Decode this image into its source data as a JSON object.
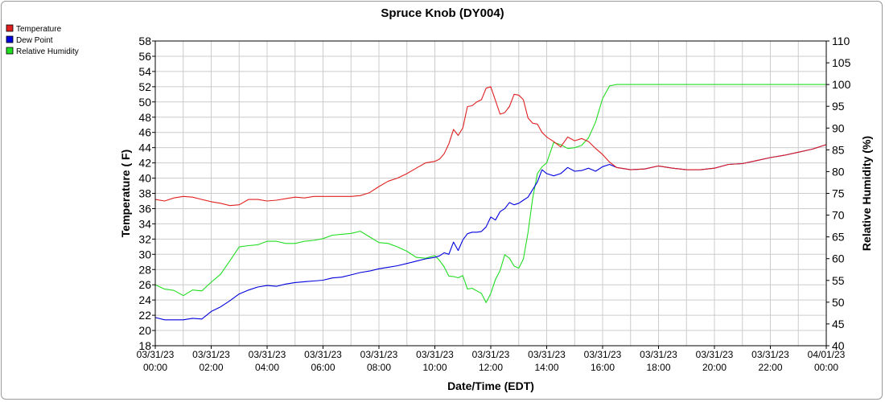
{
  "chart_data": {
    "type": "line",
    "title": "Spruce Knob (DY004)",
    "xlabel": "Date/Time (EDT)",
    "ylabel": "Temperature ( F)",
    "y2label": "Relative Humidity (%)",
    "ylim": [
      18,
      58
    ],
    "y2lim": [
      40,
      110
    ],
    "yticks": [
      "18",
      "20",
      "22",
      "24",
      "26",
      "28",
      "30",
      "32",
      "34",
      "36",
      "38",
      "40",
      "42",
      "44",
      "46",
      "48",
      "50",
      "52",
      "54",
      "56",
      "58"
    ],
    "y2ticks": [
      "40",
      "45",
      "50",
      "55",
      "60",
      "65",
      "70",
      "75",
      "80",
      "85",
      "90",
      "95",
      "100",
      "105",
      "110"
    ],
    "x_tick_labels": [
      [
        "03/31/23",
        "00:00"
      ],
      [
        "03/31/23",
        "02:00"
      ],
      [
        "03/31/23",
        "04:00"
      ],
      [
        "03/31/23",
        "06:00"
      ],
      [
        "03/31/23",
        "08:00"
      ],
      [
        "03/31/23",
        "10:00"
      ],
      [
        "03/31/23",
        "12:00"
      ],
      [
        "03/31/23",
        "14:00"
      ],
      [
        "03/31/23",
        "16:00"
      ],
      [
        "03/31/23",
        "18:00"
      ],
      [
        "03/31/23",
        "20:00"
      ],
      [
        "03/31/23",
        "22:00"
      ],
      [
        "04/01/23",
        "00:00"
      ]
    ],
    "grid": true,
    "legend_position": "top-left",
    "series": [
      {
        "name": "Temperature",
        "color": "#e02020",
        "axis": "left",
        "points": [
          [
            "03/31/23 00:00",
            37.2
          ],
          [
            "03/31/23 00:20",
            37.0
          ],
          [
            "03/31/23 00:40",
            37.4
          ],
          [
            "03/31/23 01:00",
            37.6
          ],
          [
            "03/31/23 01:20",
            37.5
          ],
          [
            "03/31/23 01:40",
            37.2
          ],
          [
            "03/31/23 02:00",
            36.9
          ],
          [
            "03/31/23 02:20",
            36.7
          ],
          [
            "03/31/23 02:40",
            36.4
          ],
          [
            "03/31/23 03:00",
            36.5
          ],
          [
            "03/31/23 03:20",
            37.2
          ],
          [
            "03/31/23 03:40",
            37.2
          ],
          [
            "03/31/23 04:00",
            37.0
          ],
          [
            "03/31/23 04:20",
            37.1
          ],
          [
            "03/31/23 04:40",
            37.3
          ],
          [
            "03/31/23 05:00",
            37.5
          ],
          [
            "03/31/23 05:20",
            37.4
          ],
          [
            "03/31/23 05:40",
            37.6
          ],
          [
            "03/31/23 06:00",
            37.6
          ],
          [
            "03/31/23 06:20",
            37.6
          ],
          [
            "03/31/23 06:40",
            37.6
          ],
          [
            "03/31/23 07:00",
            37.6
          ],
          [
            "03/31/23 07:20",
            37.7
          ],
          [
            "03/31/23 07:40",
            38.1
          ],
          [
            "03/31/23 08:00",
            38.9
          ],
          [
            "03/31/23 08:20",
            39.6
          ],
          [
            "03/31/23 08:40",
            40.0
          ],
          [
            "03/31/23 09:00",
            40.6
          ],
          [
            "03/31/23 09:20",
            41.3
          ],
          [
            "03/31/23 09:40",
            42.0
          ],
          [
            "03/31/23 10:00",
            42.2
          ],
          [
            "03/31/23 10:10",
            42.5
          ],
          [
            "03/31/23 10:20",
            43.2
          ],
          [
            "03/31/23 10:30",
            44.5
          ],
          [
            "03/31/23 10:40",
            46.4
          ],
          [
            "03/31/23 10:50",
            45.6
          ],
          [
            "03/31/23 11:00",
            46.6
          ],
          [
            "03/31/23 11:10",
            49.4
          ],
          [
            "03/31/23 11:20",
            49.5
          ],
          [
            "03/31/23 11:30",
            50.0
          ],
          [
            "03/31/23 11:40",
            50.3
          ],
          [
            "03/31/23 11:50",
            51.8
          ],
          [
            "03/31/23 12:00",
            52.0
          ],
          [
            "03/31/23 12:10",
            50.2
          ],
          [
            "03/31/23 12:20",
            48.4
          ],
          [
            "03/31/23 12:30",
            48.6
          ],
          [
            "03/31/23 12:40",
            49.4
          ],
          [
            "03/31/23 12:50",
            51.0
          ],
          [
            "03/31/23 13:00",
            50.9
          ],
          [
            "03/31/23 13:10",
            50.3
          ],
          [
            "03/31/23 13:20",
            47.9
          ],
          [
            "03/31/23 13:30",
            47.2
          ],
          [
            "03/31/23 13:40",
            47.1
          ],
          [
            "03/31/23 13:50",
            46.0
          ],
          [
            "03/31/23 14:00",
            45.4
          ],
          [
            "03/31/23 14:15",
            44.8
          ],
          [
            "03/31/23 14:30",
            44.1
          ],
          [
            "03/31/23 14:45",
            45.4
          ],
          [
            "03/31/23 15:00",
            44.9
          ],
          [
            "03/31/23 15:15",
            45.2
          ],
          [
            "03/31/23 15:30",
            44.8
          ],
          [
            "03/31/23 15:45",
            43.9
          ],
          [
            "03/31/23 16:00",
            43.1
          ],
          [
            "03/31/23 16:15",
            42.1
          ],
          [
            "03/31/23 16:30",
            41.4
          ],
          [
            "03/31/23 17:00",
            41.1
          ],
          [
            "03/31/23 17:30",
            41.2
          ],
          [
            "03/31/23 18:00",
            41.6
          ],
          [
            "03/31/23 18:30",
            41.3
          ],
          [
            "03/31/23 19:00",
            41.1
          ],
          [
            "03/31/23 19:30",
            41.1
          ],
          [
            "03/31/23 20:00",
            41.3
          ],
          [
            "03/31/23 20:30",
            41.8
          ],
          [
            "03/31/23 21:00",
            41.9
          ],
          [
            "03/31/23 21:30",
            42.3
          ],
          [
            "03/31/23 22:00",
            42.7
          ],
          [
            "03/31/23 22:30",
            43.0
          ],
          [
            "03/31/23 23:00",
            43.4
          ],
          [
            "03/31/23 23:30",
            43.8
          ],
          [
            "04/01/23 00:00",
            44.4
          ]
        ]
      },
      {
        "name": "Dew Point",
        "color": "#0000dd",
        "axis": "left",
        "points": [
          [
            "03/31/23 00:00",
            21.7
          ],
          [
            "03/31/23 00:20",
            21.4
          ],
          [
            "03/31/23 00:40",
            21.4
          ],
          [
            "03/31/23 01:00",
            21.4
          ],
          [
            "03/31/23 01:20",
            21.6
          ],
          [
            "03/31/23 01:40",
            21.5
          ],
          [
            "03/31/23 02:00",
            22.5
          ],
          [
            "03/31/23 02:20",
            23.1
          ],
          [
            "03/31/23 02:40",
            23.9
          ],
          [
            "03/31/23 03:00",
            24.8
          ],
          [
            "03/31/23 03:20",
            25.3
          ],
          [
            "03/31/23 03:40",
            25.7
          ],
          [
            "03/31/23 04:00",
            25.9
          ],
          [
            "03/31/23 04:20",
            25.8
          ],
          [
            "03/31/23 04:40",
            26.1
          ],
          [
            "03/31/23 05:00",
            26.3
          ],
          [
            "03/31/23 05:20",
            26.4
          ],
          [
            "03/31/23 05:40",
            26.5
          ],
          [
            "03/31/23 06:00",
            26.6
          ],
          [
            "03/31/23 06:20",
            26.9
          ],
          [
            "03/31/23 06:40",
            27.0
          ],
          [
            "03/31/23 07:00",
            27.3
          ],
          [
            "03/31/23 07:20",
            27.6
          ],
          [
            "03/31/23 07:40",
            27.8
          ],
          [
            "03/31/23 08:00",
            28.1
          ],
          [
            "03/31/23 08:20",
            28.3
          ],
          [
            "03/31/23 08:40",
            28.5
          ],
          [
            "03/31/23 09:00",
            28.8
          ],
          [
            "03/31/23 09:20",
            29.1
          ],
          [
            "03/31/23 09:40",
            29.4
          ],
          [
            "03/31/23 10:00",
            29.6
          ],
          [
            "03/31/23 10:10",
            29.8
          ],
          [
            "03/31/23 10:20",
            30.2
          ],
          [
            "03/31/23 10:30",
            30.0
          ],
          [
            "03/31/23 10:40",
            31.6
          ],
          [
            "03/31/23 10:50",
            30.5
          ],
          [
            "03/31/23 11:00",
            31.9
          ],
          [
            "03/31/23 11:10",
            32.7
          ],
          [
            "03/31/23 11:20",
            32.9
          ],
          [
            "03/31/23 11:30",
            32.9
          ],
          [
            "03/31/23 11:40",
            33.0
          ],
          [
            "03/31/23 11:50",
            33.6
          ],
          [
            "03/31/23 12:00",
            34.9
          ],
          [
            "03/31/23 12:10",
            34.5
          ],
          [
            "03/31/23 12:20",
            35.6
          ],
          [
            "03/31/23 12:30",
            36.0
          ],
          [
            "03/31/23 12:40",
            36.8
          ],
          [
            "03/31/23 12:50",
            36.5
          ],
          [
            "03/31/23 13:00",
            36.7
          ],
          [
            "03/31/23 13:10",
            37.1
          ],
          [
            "03/31/23 13:20",
            37.5
          ],
          [
            "03/31/23 13:30",
            38.5
          ],
          [
            "03/31/23 13:40",
            39.5
          ],
          [
            "03/31/23 13:50",
            41.1
          ],
          [
            "03/31/23 14:00",
            40.6
          ],
          [
            "03/31/23 14:15",
            40.3
          ],
          [
            "03/31/23 14:30",
            40.6
          ],
          [
            "03/31/23 14:45",
            41.4
          ],
          [
            "03/31/23 15:00",
            40.9
          ],
          [
            "03/31/23 15:15",
            41.0
          ],
          [
            "03/31/23 15:30",
            41.3
          ],
          [
            "03/31/23 15:45",
            40.9
          ],
          [
            "03/31/23 16:00",
            41.5
          ],
          [
            "03/31/23 16:15",
            41.8
          ],
          [
            "03/31/23 16:30",
            41.4
          ],
          [
            "03/31/23 17:00",
            41.1
          ],
          [
            "03/31/23 17:30",
            41.2
          ],
          [
            "03/31/23 18:00",
            41.6
          ],
          [
            "03/31/23 18:30",
            41.3
          ],
          [
            "03/31/23 19:00",
            41.1
          ],
          [
            "03/31/23 19:30",
            41.1
          ],
          [
            "03/31/23 20:00",
            41.3
          ],
          [
            "03/31/23 20:30",
            41.8
          ],
          [
            "03/31/23 21:00",
            41.9
          ],
          [
            "03/31/23 21:30",
            42.3
          ],
          [
            "03/31/23 22:00",
            42.7
          ],
          [
            "03/31/23 22:30",
            43.0
          ],
          [
            "03/31/23 23:00",
            43.4
          ],
          [
            "03/31/23 23:30",
            43.8
          ],
          [
            "04/01/23 00:00",
            44.4
          ]
        ]
      },
      {
        "name": "Relative Humidity",
        "color": "#22dd22",
        "axis": "right",
        "points": [
          [
            "03/31/23 00:00",
            54.0
          ],
          [
            "03/31/23 00:20",
            53.0
          ],
          [
            "03/31/23 00:40",
            52.7
          ],
          [
            "03/31/23 01:00",
            51.5
          ],
          [
            "03/31/23 01:20",
            52.8
          ],
          [
            "03/31/23 01:40",
            52.6
          ],
          [
            "03/31/23 02:00",
            54.6
          ],
          [
            "03/31/23 02:20",
            56.4
          ],
          [
            "03/31/23 02:40",
            59.5
          ],
          [
            "03/31/23 03:00",
            62.7
          ],
          [
            "03/31/23 03:20",
            63.0
          ],
          [
            "03/31/23 03:40",
            63.2
          ],
          [
            "03/31/23 04:00",
            64.0
          ],
          [
            "03/31/23 04:20",
            64.0
          ],
          [
            "03/31/23 04:40",
            63.5
          ],
          [
            "03/31/23 05:00",
            63.5
          ],
          [
            "03/31/23 05:20",
            64.0
          ],
          [
            "03/31/23 05:40",
            64.2
          ],
          [
            "03/31/23 06:00",
            64.6
          ],
          [
            "03/31/23 06:20",
            65.4
          ],
          [
            "03/31/23 06:40",
            65.6
          ],
          [
            "03/31/23 07:00",
            65.8
          ],
          [
            "03/31/23 07:20",
            66.3
          ],
          [
            "03/31/23 07:40",
            65.0
          ],
          [
            "03/31/23 08:00",
            63.7
          ],
          [
            "03/31/23 08:20",
            63.5
          ],
          [
            "03/31/23 08:40",
            62.7
          ],
          [
            "03/31/23 09:00",
            61.7
          ],
          [
            "03/31/23 09:20",
            60.3
          ],
          [
            "03/31/23 09:40",
            60.1
          ],
          [
            "03/31/23 10:00",
            60.7
          ],
          [
            "03/31/23 10:10",
            59.6
          ],
          [
            "03/31/23 10:20",
            58.1
          ],
          [
            "03/31/23 10:30",
            56.0
          ],
          [
            "03/31/23 10:40",
            55.9
          ],
          [
            "03/31/23 10:50",
            55.6
          ],
          [
            "03/31/23 11:00",
            56.1
          ],
          [
            "03/31/23 11:10",
            53.0
          ],
          [
            "03/31/23 11:20",
            53.2
          ],
          [
            "03/31/23 11:30",
            52.6
          ],
          [
            "03/31/23 11:40",
            52.0
          ],
          [
            "03/31/23 11:50",
            49.9
          ],
          [
            "03/31/23 12:00",
            52.0
          ],
          [
            "03/31/23 12:10",
            55.2
          ],
          [
            "03/31/23 12:20",
            57.3
          ],
          [
            "03/31/23 12:30",
            60.9
          ],
          [
            "03/31/23 12:40",
            60.1
          ],
          [
            "03/31/23 12:50",
            58.3
          ],
          [
            "03/31/23 13:00",
            57.8
          ],
          [
            "03/31/23 13:10",
            59.9
          ],
          [
            "03/31/23 13:20",
            66.0
          ],
          [
            "03/31/23 13:30",
            73.9
          ],
          [
            "03/31/23 13:40",
            79.5
          ],
          [
            "03/31/23 13:50",
            81.1
          ],
          [
            "03/31/23 14:00",
            82.0
          ],
          [
            "03/31/23 14:15",
            86.7
          ],
          [
            "03/31/23 14:30",
            86.2
          ],
          [
            "03/31/23 14:45",
            85.3
          ],
          [
            "03/31/23 15:00",
            85.5
          ],
          [
            "03/31/23 15:15",
            86.0
          ],
          [
            "03/31/23 15:30",
            87.8
          ],
          [
            "03/31/23 15:45",
            91.4
          ],
          [
            "03/31/23 16:00",
            96.8
          ],
          [
            "03/31/23 16:15",
            99.7
          ],
          [
            "03/31/23 16:30",
            100.0
          ],
          [
            "03/31/23 18:00",
            100.0
          ],
          [
            "03/31/23 20:00",
            100.0
          ],
          [
            "03/31/23 22:00",
            100.0
          ],
          [
            "04/01/23 00:00",
            100.0
          ]
        ]
      }
    ]
  }
}
